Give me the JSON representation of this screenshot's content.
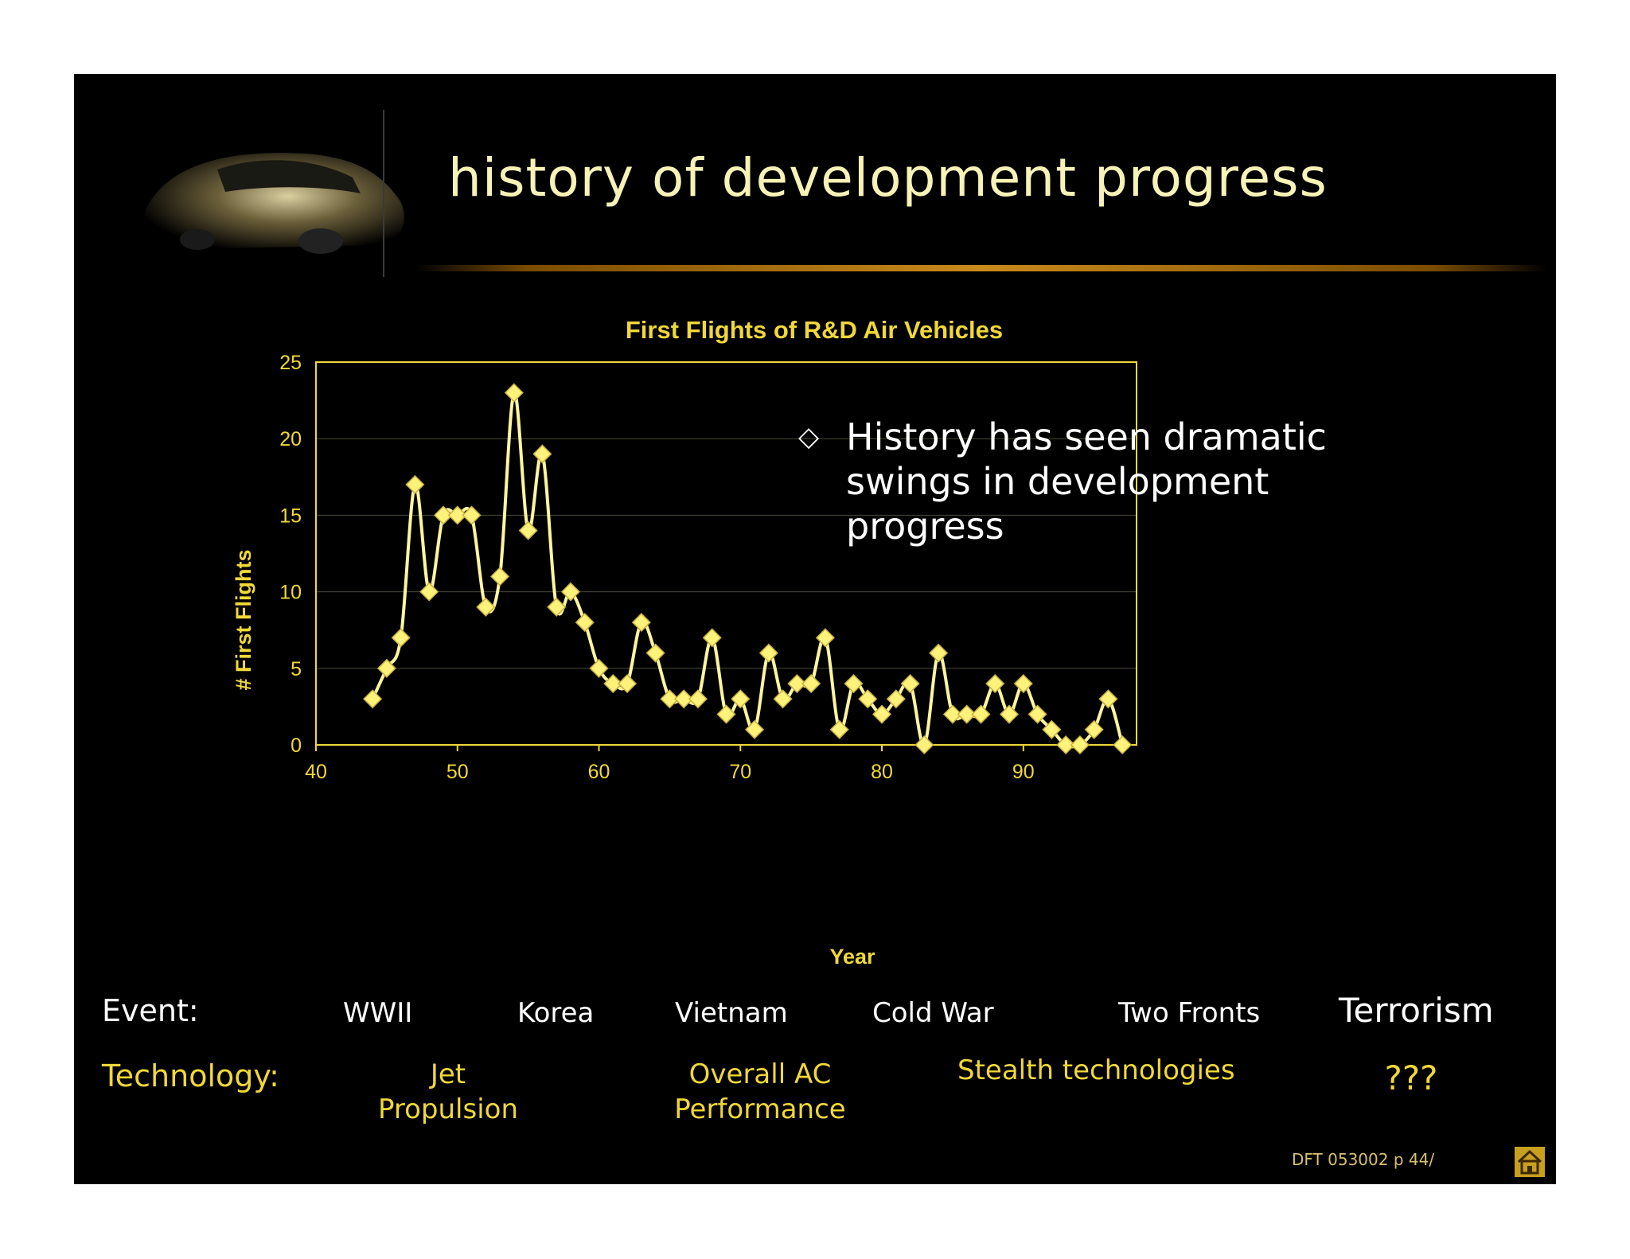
{
  "slide": {
    "title": "history of development progress",
    "footer": "DFT 053002 p 44/"
  },
  "bullet": {
    "text": "History has seen dramatic swings in development progress"
  },
  "events": {
    "label": "Event:",
    "items": [
      "WWII",
      "Korea",
      "Vietnam",
      "Cold War",
      "Two Fronts",
      "Terrorism"
    ]
  },
  "technology": {
    "label": "Technology:",
    "items": [
      "Jet Propulsion",
      "Overall AC Performance",
      "Stealth technologies",
      "???"
    ]
  },
  "colors": {
    "background": "#000000",
    "title": "#f7f2b6",
    "accent": "#f0d838",
    "marker": "#fff27a",
    "line": "#fff5a0"
  },
  "icons": [
    "car-image",
    "home-icon",
    "diamond-bullet-icon"
  ],
  "chart_data": {
    "type": "line",
    "title": "First Flights of R&D Air Vehicles",
    "xlabel": "Year",
    "ylabel": "# First Flights",
    "xlim": [
      40,
      98
    ],
    "ylim": [
      0,
      25
    ],
    "xticks": [
      40,
      50,
      60,
      70,
      80,
      90
    ],
    "yticks": [
      0,
      5,
      10,
      15,
      20,
      25
    ],
    "grid": "horizontal",
    "marker": "diamond",
    "x": [
      44,
      45,
      46,
      47,
      48,
      49,
      50,
      51,
      52,
      53,
      54,
      55,
      56,
      57,
      58,
      59,
      60,
      61,
      62,
      63,
      64,
      65,
      66,
      67,
      68,
      69,
      70,
      71,
      72,
      73,
      74,
      75,
      76,
      77,
      78,
      79,
      80,
      81,
      82,
      83,
      84,
      85,
      86,
      87,
      88,
      89,
      90,
      91,
      92,
      93,
      94,
      95,
      96,
      97
    ],
    "y": [
      3,
      5,
      7,
      17,
      10,
      15,
      15,
      15,
      9,
      11,
      23,
      14,
      19,
      9,
      10,
      8,
      5,
      4,
      4,
      8,
      6,
      3,
      3,
      3,
      7,
      2,
      3,
      1,
      6,
      3,
      4,
      4,
      7,
      1,
      4,
      3,
      2,
      3,
      4,
      0,
      6,
      2,
      2,
      2,
      4,
      2,
      4,
      2,
      1,
      0,
      0,
      1,
      3,
      0
    ]
  }
}
